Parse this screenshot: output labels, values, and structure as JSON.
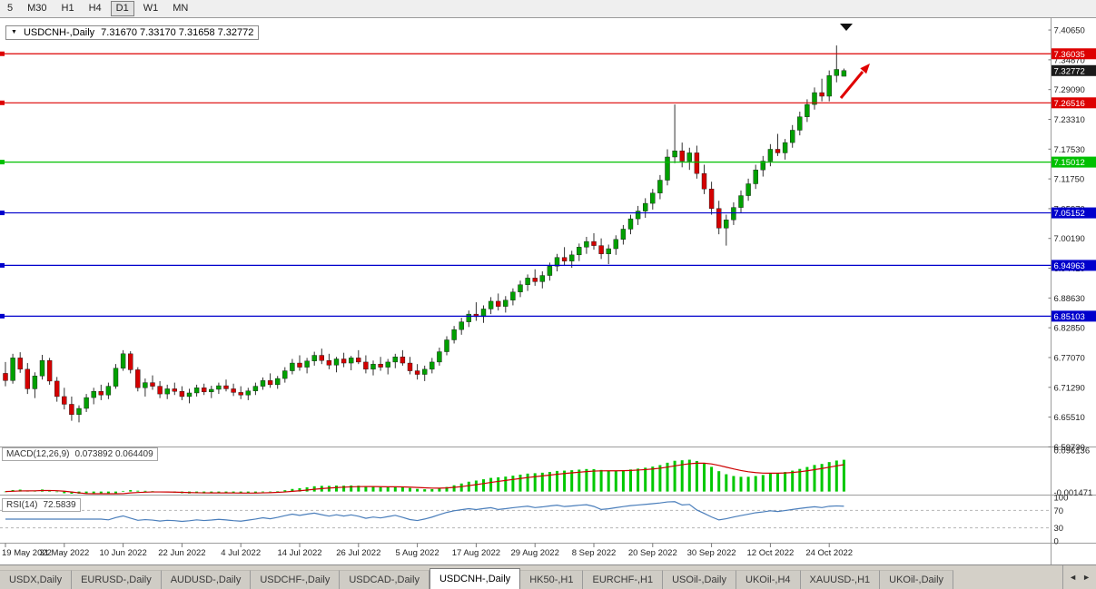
{
  "toolbar": {
    "periods": [
      {
        "label": "5",
        "active": false
      },
      {
        "label": "M30",
        "active": false
      },
      {
        "label": "H1",
        "active": false
      },
      {
        "label": "H4",
        "active": false
      },
      {
        "label": "D1",
        "active": true
      },
      {
        "label": "W1",
        "active": false
      },
      {
        "label": "MN",
        "active": false
      }
    ]
  },
  "chart": {
    "dropdown_glyph": "▼",
    "title_symbol": "USDCNH-,Daily",
    "title_ohlc": "7.31670 7.33170 7.31658 7.32772",
    "macd_label": "MACD(12,26,9)",
    "macd_values": "0.073892 0.064409",
    "rsi_label": "RSI(14)",
    "rsi_value": "72.5839"
  },
  "chart_data": {
    "type": "candlestick",
    "title": "USDCNH-,Daily",
    "ohlc_display": {
      "open": 7.3167,
      "high": 7.3317,
      "low": 7.31658,
      "close": 7.32772
    },
    "current_price": 7.32772,
    "current_tag": {
      "label": "7.32772",
      "color": "#1a1a1a"
    },
    "y_range": [
      6.598,
      7.426
    ],
    "price_axis_labels": [
      "7.40650",
      "7.34870",
      "7.29090",
      "7.23310",
      "7.17530",
      "7.11750",
      "7.05970",
      "7.00190",
      "6.94410",
      "6.88630",
      "6.82850",
      "6.77070",
      "6.71290",
      "6.65510",
      "6.59730"
    ],
    "date_axis_labels": [
      "19 May 2022",
      "31 May 2022",
      "10 Jun 2022",
      "22 Jun 2022",
      "4 Jul 2022",
      "14 Jul 2022",
      "26 Jul 2022",
      "5 Aug 2022",
      "17 Aug 2022",
      "29 Aug 2022",
      "8 Sep 2022",
      "20 Sep 2022",
      "30 Sep 2022",
      "12 Oct 2022",
      "24 Oct 2022"
    ],
    "date_label_step": 8,
    "levels": [
      {
        "price": 7.36035,
        "label": "7.36035",
        "color": "#dd0000"
      },
      {
        "price": 7.26516,
        "label": "7.26516",
        "color": "#dd0000"
      },
      {
        "price": 7.15012,
        "label": "7.15012",
        "color": "#00c000"
      },
      {
        "price": 7.05152,
        "label": "7.05152",
        "color": "#0000cc"
      },
      {
        "price": 6.94963,
        "label": "6.94963",
        "color": "#0000cc"
      },
      {
        "price": 6.85103,
        "label": "6.85103",
        "color": "#0000cc"
      }
    ],
    "colors": {
      "up": "#00a000",
      "down": "#d40000",
      "wick": "#333333",
      "macd_hist": "#00c800",
      "macd_signal": "#cc0000",
      "rsi_line": "#4a7ebb"
    },
    "macd": {
      "params": [
        12,
        26,
        9
      ],
      "display_values": [
        0.073892,
        0.064409
      ],
      "range": [
        -0.005,
        0.1005
      ],
      "axis_labels": [
        {
          "value": 0.096136,
          "text": "0.096136"
        },
        {
          "value": -0.001471,
          "text": "-0.001471"
        }
      ]
    },
    "rsi": {
      "period": 14,
      "display_value": 72.5839,
      "range": [
        0,
        100
      ],
      "guide_levels": [
        70,
        30
      ],
      "axis_labels": [
        {
          "value": 100,
          "text": "100"
        },
        {
          "value": 70,
          "text": "70"
        },
        {
          "value": 30,
          "text": "30"
        },
        {
          "value": 0,
          "text": "0"
        }
      ]
    },
    "annotations": {
      "arrow": {
        "color": "#e00000",
        "direction": "up-right"
      },
      "shift_marker": true
    },
    "candles": [
      [
        6.74,
        6.762,
        6.715,
        6.726
      ],
      [
        6.726,
        6.778,
        6.72,
        6.77
      ],
      [
        6.77,
        6.781,
        6.741,
        6.748
      ],
      [
        6.748,
        6.76,
        6.7,
        6.71
      ],
      [
        6.71,
        6.742,
        6.692,
        6.735
      ],
      [
        6.735,
        6.776,
        6.728,
        6.765
      ],
      [
        6.765,
        6.77,
        6.718,
        6.725
      ],
      [
        6.725,
        6.733,
        6.685,
        6.695
      ],
      [
        6.695,
        6.712,
        6.67,
        6.68
      ],
      [
        6.68,
        6.695,
        6.648,
        6.66
      ],
      [
        6.66,
        6.678,
        6.645,
        6.672
      ],
      [
        6.672,
        6.7,
        6.665,
        6.693
      ],
      [
        6.693,
        6.712,
        6.68,
        6.705
      ],
      [
        6.705,
        6.718,
        6.688,
        6.698
      ],
      [
        6.698,
        6.722,
        6.69,
        6.715
      ],
      [
        6.715,
        6.758,
        6.71,
        6.75
      ],
      [
        6.75,
        6.785,
        6.745,
        6.778
      ],
      [
        6.778,
        6.783,
        6.74,
        6.747
      ],
      [
        6.747,
        6.752,
        6.705,
        6.712
      ],
      [
        6.712,
        6.73,
        6.695,
        6.722
      ],
      [
        6.722,
        6.736,
        6.708,
        6.715
      ],
      [
        6.715,
        6.725,
        6.692,
        6.7
      ],
      [
        6.7,
        6.718,
        6.69,
        6.71
      ],
      [
        6.71,
        6.722,
        6.698,
        6.705
      ],
      [
        6.705,
        6.715,
        6.688,
        6.695
      ],
      [
        6.695,
        6.71,
        6.682,
        6.702
      ],
      [
        6.702,
        6.718,
        6.695,
        6.712
      ],
      [
        6.712,
        6.72,
        6.698,
        6.704
      ],
      [
        6.704,
        6.716,
        6.692,
        6.709
      ],
      [
        6.709,
        6.722,
        6.7,
        6.716
      ],
      [
        6.716,
        6.728,
        6.705,
        6.71
      ],
      [
        6.71,
        6.72,
        6.696,
        6.703
      ],
      [
        6.703,
        6.715,
        6.69,
        6.698
      ],
      [
        6.698,
        6.712,
        6.688,
        6.706
      ],
      [
        6.706,
        6.722,
        6.698,
        6.715
      ],
      [
        6.715,
        6.732,
        6.708,
        6.726
      ],
      [
        6.726,
        6.74,
        6.712,
        6.718
      ],
      [
        6.718,
        6.735,
        6.71,
        6.73
      ],
      [
        6.73,
        6.752,
        6.722,
        6.745
      ],
      [
        6.745,
        6.768,
        6.738,
        6.76
      ],
      [
        6.76,
        6.775,
        6.745,
        6.752
      ],
      [
        6.752,
        6.77,
        6.74,
        6.764
      ],
      [
        6.764,
        6.782,
        6.755,
        6.775
      ],
      [
        6.775,
        6.788,
        6.758,
        6.765
      ],
      [
        6.765,
        6.778,
        6.748,
        6.756
      ],
      [
        6.756,
        6.772,
        6.742,
        6.768
      ],
      [
        6.768,
        6.78,
        6.752,
        6.76
      ],
      [
        6.76,
        6.774,
        6.746,
        6.77
      ],
      [
        6.77,
        6.785,
        6.758,
        6.762
      ],
      [
        6.762,
        6.775,
        6.74,
        6.748
      ],
      [
        6.748,
        6.765,
        6.736,
        6.758
      ],
      [
        6.758,
        6.772,
        6.745,
        6.752
      ],
      [
        6.752,
        6.768,
        6.738,
        6.762
      ],
      [
        6.762,
        6.778,
        6.75,
        6.772
      ],
      [
        6.772,
        6.785,
        6.755,
        6.76
      ],
      [
        6.76,
        6.772,
        6.738,
        6.745
      ],
      [
        6.745,
        6.758,
        6.728,
        6.738
      ],
      [
        6.738,
        6.755,
        6.725,
        6.748
      ],
      [
        6.748,
        6.77,
        6.74,
        6.762
      ],
      [
        6.762,
        6.79,
        6.755,
        6.782
      ],
      [
        6.782,
        6.812,
        6.775,
        6.805
      ],
      [
        6.805,
        6.832,
        6.798,
        6.825
      ],
      [
        6.825,
        6.848,
        6.815,
        6.84
      ],
      [
        6.84,
        6.862,
        6.83,
        6.855
      ],
      [
        6.855,
        6.878,
        6.842,
        6.85
      ],
      [
        6.85,
        6.872,
        6.838,
        6.865
      ],
      [
        6.865,
        6.888,
        6.855,
        6.88
      ],
      [
        6.88,
        6.895,
        6.862,
        6.87
      ],
      [
        6.87,
        6.89,
        6.858,
        6.882
      ],
      [
        6.882,
        6.905,
        6.872,
        6.898
      ],
      [
        6.898,
        6.92,
        6.888,
        6.912
      ],
      [
        6.912,
        6.932,
        6.9,
        6.925
      ],
      [
        6.925,
        6.942,
        6.91,
        6.918
      ],
      [
        6.918,
        6.938,
        6.905,
        6.93
      ],
      [
        6.93,
        6.955,
        6.92,
        6.948
      ],
      [
        6.948,
        6.972,
        6.938,
        6.965
      ],
      [
        6.965,
        6.985,
        6.95,
        6.958
      ],
      [
        6.958,
        6.978,
        6.945,
        6.97
      ],
      [
        6.97,
        6.992,
        6.958,
        6.985
      ],
      [
        6.985,
        7.005,
        6.972,
        6.996
      ],
      [
        6.996,
        7.012,
        6.98,
        6.988
      ],
      [
        6.988,
        7.002,
        6.962,
        6.972
      ],
      [
        6.972,
        6.99,
        6.952,
        6.982
      ],
      [
        6.982,
        7.008,
        6.97,
        7.0
      ],
      [
        7.0,
        7.028,
        6.99,
        7.02
      ],
      [
        7.02,
        7.048,
        7.01,
        7.04
      ],
      [
        7.04,
        7.065,
        7.028,
        7.055
      ],
      [
        7.055,
        7.08,
        7.042,
        7.07
      ],
      [
        7.07,
        7.098,
        7.058,
        7.09
      ],
      [
        7.09,
        7.125,
        7.078,
        7.115
      ],
      [
        7.115,
        7.175,
        7.105,
        7.16
      ],
      [
        7.16,
        7.262,
        7.148,
        7.172
      ],
      [
        7.172,
        7.188,
        7.14,
        7.152
      ],
      [
        7.152,
        7.178,
        7.135,
        7.168
      ],
      [
        7.168,
        7.182,
        7.118,
        7.128
      ],
      [
        7.128,
        7.145,
        7.088,
        7.098
      ],
      [
        7.098,
        7.112,
        7.048,
        7.06
      ],
      [
        7.06,
        7.075,
        7.01,
        7.022
      ],
      [
        7.022,
        7.048,
        6.988,
        7.038
      ],
      [
        7.038,
        7.072,
        7.028,
        7.062
      ],
      [
        7.062,
        7.095,
        7.052,
        7.085
      ],
      [
        7.085,
        7.118,
        7.075,
        7.108
      ],
      [
        7.108,
        7.145,
        7.098,
        7.135
      ],
      [
        7.135,
        7.162,
        7.122,
        7.152
      ],
      [
        7.152,
        7.185,
        7.142,
        7.175
      ],
      [
        7.175,
        7.205,
        7.162,
        7.168
      ],
      [
        7.168,
        7.195,
        7.155,
        7.188
      ],
      [
        7.188,
        7.222,
        7.178,
        7.212
      ],
      [
        7.212,
        7.248,
        7.202,
        7.238
      ],
      [
        7.238,
        7.272,
        7.228,
        7.262
      ],
      [
        7.262,
        7.295,
        7.252,
        7.285
      ],
      [
        7.285,
        7.312,
        7.268,
        7.278
      ],
      [
        7.278,
        7.328,
        7.268,
        7.318
      ],
      [
        7.318,
        7.3765,
        7.305,
        7.33
      ],
      [
        7.3167,
        7.3317,
        7.3166,
        7.32772
      ]
    ]
  },
  "tabbar": {
    "tabs": [
      "USDX,Daily",
      "EURUSD-,Daily",
      "AUDUSD-,Daily",
      "USDCHF-,Daily",
      "USDCAD-,Daily",
      "USDCNH-,Daily",
      "HK50-,H1",
      "EURCHF-,H1",
      "USOil-,Daily",
      "UKOil-,H4",
      "XAUUSD-,H1",
      "UKOil-,Daily"
    ],
    "active": "USDCNH-,Daily",
    "scroll_left": "◄",
    "scroll_right": "►"
  }
}
